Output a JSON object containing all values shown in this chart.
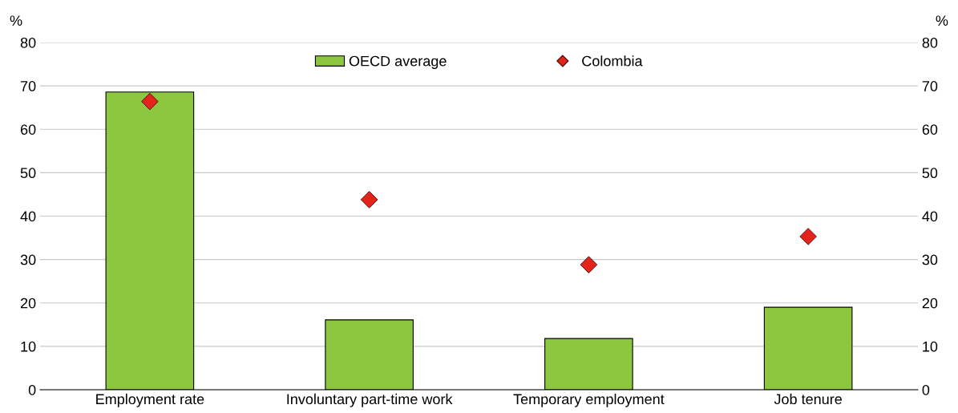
{
  "chart_data": {
    "type": "bar",
    "categories": [
      "Employment rate",
      "Involuntary part-time work",
      "Temporary employment",
      "Job tenure"
    ],
    "series": [
      {
        "name": "OECD average",
        "color": "#8dc63f",
        "values": [
          68.6,
          16.1,
          11.8,
          19.0
        ]
      },
      {
        "name": "Colombia",
        "type": "scatter",
        "color": "#e3241b",
        "marker": "diamond",
        "values": [
          66.4,
          43.8,
          28.8,
          35.3
        ]
      }
    ],
    "ylabel": "%",
    "y2label": "%",
    "ylim": [
      0,
      80
    ],
    "yticks": [
      0,
      10,
      20,
      30,
      40,
      50,
      60,
      70,
      80
    ],
    "y2lim": [
      0,
      80
    ],
    "y2ticks": [
      0,
      10,
      20,
      30,
      40,
      50,
      60,
      70,
      80
    ],
    "grid": "y",
    "legend": "top"
  }
}
